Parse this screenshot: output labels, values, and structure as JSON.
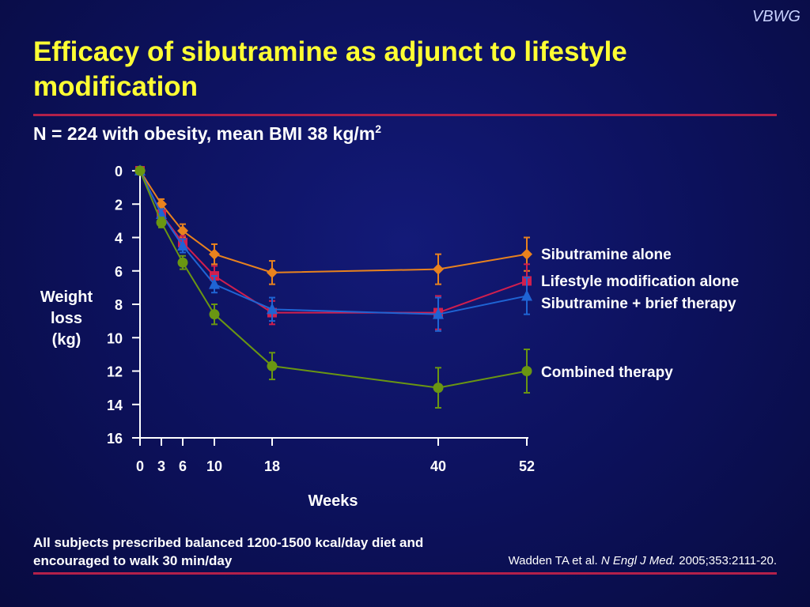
{
  "brand": "VBWG",
  "title": "Efficacy of sibutramine as adjunct to lifestyle modification",
  "subtitle": {
    "text": "N = 224 with obesity, mean BMI 38 kg/m",
    "superscript": "2"
  },
  "footnote": "All subjects prescribed balanced 1200-1500 kcal/day diet and encouraged to walk 30 min/day",
  "citation": {
    "authors": "Wadden TA et al.",
    "journal": "N Engl J Med.",
    "details": "2005;353:2111-20."
  },
  "colors": {
    "title": "#ffff33",
    "rule": "#b3204a",
    "background": "#0b0f52"
  },
  "chart_data": {
    "type": "line",
    "xlabel": "Weeks",
    "ylabel": [
      "Weight",
      "loss",
      "(kg)"
    ],
    "x": [
      0,
      3,
      6,
      10,
      18,
      40,
      52
    ],
    "x_ticks": [
      0,
      3,
      6,
      10,
      18,
      40,
      52
    ],
    "y_ticks": [
      0,
      2,
      4,
      6,
      8,
      10,
      12,
      14,
      16
    ],
    "ylim": [
      0,
      16
    ],
    "y_inverted": true,
    "grid": false,
    "legend": "inline labels at right end of each line",
    "series": [
      {
        "name": "Sibutramine alone",
        "color": "#e8821e",
        "marker": "diamond",
        "values": [
          0,
          2.0,
          3.6,
          5.0,
          6.1,
          5.9,
          5.0
        ],
        "errors": [
          0,
          0.3,
          0.4,
          0.6,
          0.7,
          0.9,
          1.0
        ]
      },
      {
        "name": "Lifestyle modification alone",
        "color": "#d01f4e",
        "marker": "square",
        "values": [
          0,
          2.6,
          4.3,
          6.3,
          8.5,
          8.5,
          6.6
        ],
        "errors": [
          0,
          0.3,
          0.4,
          0.6,
          0.7,
          1.0,
          1.0
        ]
      },
      {
        "name": "Sibutramine + brief therapy",
        "color": "#1f64d4",
        "marker": "triangle",
        "values": [
          0,
          2.6,
          4.5,
          6.8,
          8.3,
          8.6,
          7.5
        ],
        "errors": [
          0,
          0.3,
          0.4,
          0.5,
          0.7,
          1.0,
          1.1
        ]
      },
      {
        "name": "Combined therapy",
        "color": "#6a9612",
        "marker": "circle",
        "values": [
          0,
          3.1,
          5.5,
          8.6,
          11.7,
          13.0,
          12.0
        ],
        "errors": [
          0,
          0.3,
          0.4,
          0.6,
          0.8,
          1.2,
          1.3
        ]
      }
    ]
  }
}
